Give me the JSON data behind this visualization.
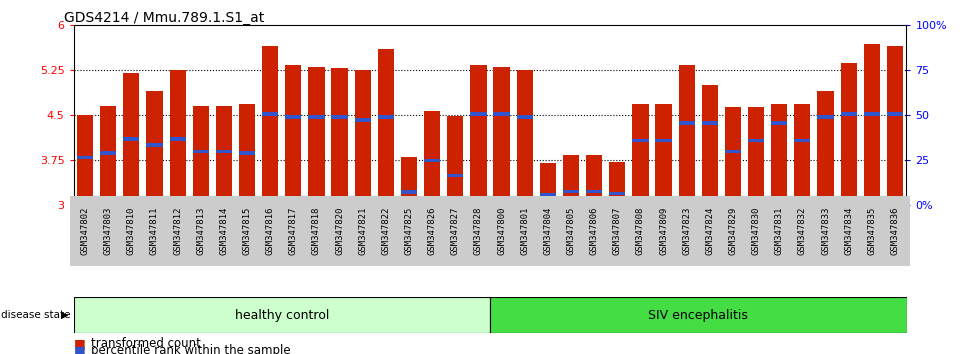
{
  "title": "GDS4214 / Mmu.789.1.S1_at",
  "samples": [
    "GSM347802",
    "GSM347803",
    "GSM347810",
    "GSM347811",
    "GSM347812",
    "GSM347813",
    "GSM347814",
    "GSM347815",
    "GSM347816",
    "GSM347817",
    "GSM347818",
    "GSM347820",
    "GSM347821",
    "GSM347822",
    "GSM347825",
    "GSM347826",
    "GSM347827",
    "GSM347828",
    "GSM347800",
    "GSM347801",
    "GSM347804",
    "GSM347805",
    "GSM347806",
    "GSM347807",
    "GSM347808",
    "GSM347809",
    "GSM347823",
    "GSM347824",
    "GSM347829",
    "GSM347830",
    "GSM347831",
    "GSM347832",
    "GSM347833",
    "GSM347834",
    "GSM347835",
    "GSM347836"
  ],
  "bar_values": [
    4.5,
    4.65,
    5.2,
    4.9,
    5.25,
    4.65,
    4.65,
    4.68,
    5.65,
    5.33,
    5.3,
    5.28,
    5.25,
    5.6,
    3.8,
    4.57,
    4.48,
    5.33,
    5.3,
    5.25,
    3.7,
    3.83,
    3.83,
    3.72,
    4.68,
    4.68,
    5.33,
    5.0,
    4.63,
    4.63,
    4.68,
    4.68,
    4.9,
    5.37,
    5.68,
    5.65
  ],
  "percentile_values": [
    3.8,
    3.87,
    4.1,
    4.0,
    4.1,
    3.9,
    3.9,
    3.87,
    4.52,
    4.47,
    4.47,
    4.47,
    4.42,
    4.47,
    3.22,
    3.75,
    3.5,
    4.52,
    4.52,
    4.47,
    3.17,
    3.23,
    3.23,
    3.2,
    4.08,
    4.08,
    4.37,
    4.37,
    3.9,
    4.08,
    4.37,
    4.08,
    4.47,
    4.52,
    4.52,
    4.52
  ],
  "group1_label": "healthy control",
  "group2_label": "SIV encephalitis",
  "group1_count": 18,
  "group2_count": 18,
  "ymin": 3.0,
  "ymax": 6.0,
  "yticks_left": [
    3.0,
    3.75,
    4.5,
    5.25,
    6.0
  ],
  "ytick_labels_left": [
    "3",
    "3.75",
    "4.5",
    "5.25",
    "6"
  ],
  "yticks_right": [
    0,
    25,
    50,
    75,
    100
  ],
  "ytick_labels_right": [
    "0%",
    "25",
    "50",
    "75",
    "100%"
  ],
  "bar_color": "#CC2200",
  "percentile_color": "#3355CC",
  "group1_bg": "#CCFFCC",
  "group2_bg": "#44DD44",
  "tick_label_bg": "#CCCCCC",
  "tick_label_fontsize": 6.5,
  "group_label_fontsize": 9,
  "title_fontsize": 10,
  "legend_fontsize": 8.5
}
